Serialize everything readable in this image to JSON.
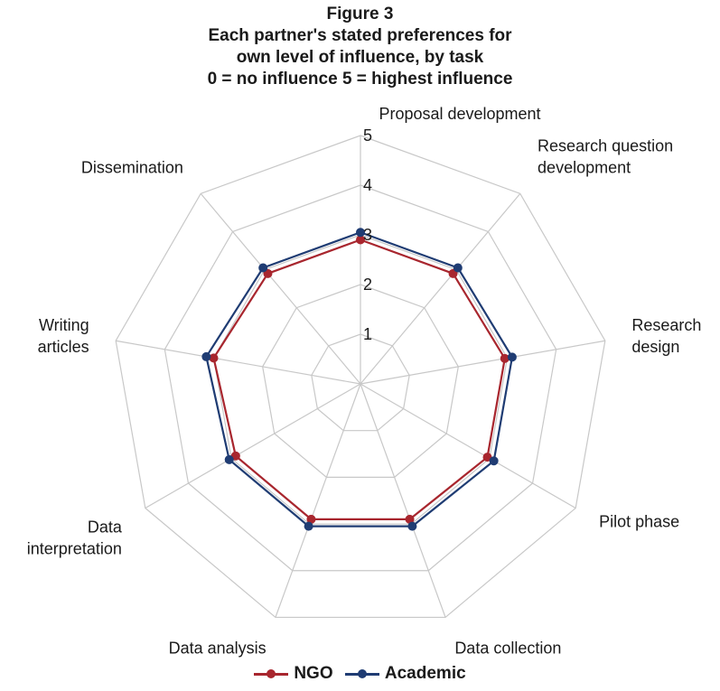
{
  "chart_data": {
    "type": "radar",
    "title": "Figure 3",
    "subtitle_lines": [
      "Each partner's stated preferences for",
      "own level of influence, by task",
      "0 = no influence 5 = highest influence"
    ],
    "axes": [
      [
        "Proposal development"
      ],
      [
        "Research question",
        "development"
      ],
      [
        "Research",
        "design"
      ],
      [
        "Pilot phase"
      ],
      [
        "Data collection"
      ],
      [
        "Data analysis"
      ],
      [
        "Data",
        "interpretation"
      ],
      [
        "Writing",
        "articles"
      ],
      [
        "Dissemination"
      ]
    ],
    "ticks": [
      1,
      2,
      3,
      4,
      5
    ],
    "rmax": 5,
    "series": [
      {
        "name": "NGO",
        "color": "#a8262e",
        "values": [
          2.9,
          2.9,
          2.95,
          2.95,
          2.9,
          2.9,
          2.9,
          3.0,
          2.9
        ]
      },
      {
        "name": "Academic",
        "color": "#1f3c73",
        "values": [
          3.05,
          3.05,
          3.1,
          3.1,
          3.05,
          3.05,
          3.05,
          3.15,
          3.05
        ]
      }
    ],
    "grid_color": "#c8c8c8",
    "legend_position": "bottom"
  }
}
